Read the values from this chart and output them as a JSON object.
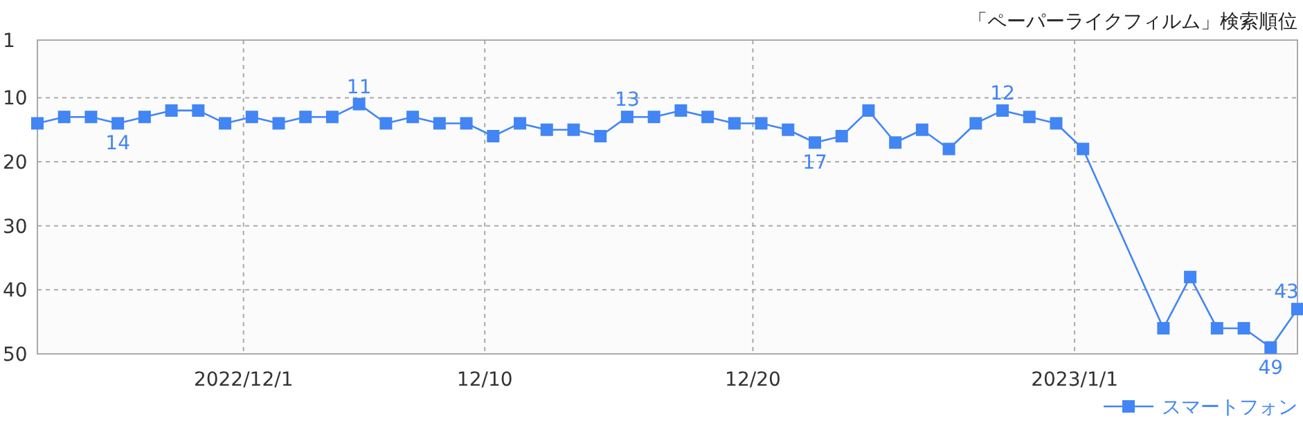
{
  "chart_data": {
    "type": "line",
    "title": "「ペーパーライクフィルム」検索順位",
    "x": [
      "2022-11-23T07:30",
      "2022-11-24T07:30",
      "2022-11-25T07:30",
      "2022-11-26T07:30",
      "2022-11-27T07:30",
      "2022-11-28T07:30",
      "2022-11-29T07:30",
      "2022-11-30T07:30",
      "2022-12-01T07:30",
      "2022-12-02T07:30",
      "2022-12-03T07:30",
      "2022-12-04T07:30",
      "2022-12-05T07:30",
      "2022-12-06T07:30",
      "2022-12-07T07:30",
      "2022-12-08T07:30",
      "2022-12-09T07:30",
      "2022-12-10T07:30",
      "2022-12-11T07:30",
      "2022-12-12T07:30",
      "2022-12-13T07:30",
      "2022-12-14T07:30",
      "2022-12-15T07:30",
      "2022-12-16T07:30",
      "2022-12-17T07:30",
      "2022-12-18T07:30",
      "2022-12-19T07:30",
      "2022-12-20T07:30",
      "2022-12-21T07:30",
      "2022-12-22T07:30",
      "2022-12-23T07:30",
      "2022-12-24T07:30",
      "2022-12-25T07:30",
      "2022-12-26T07:30",
      "2022-12-27T07:30",
      "2022-12-28T07:30",
      "2022-12-29T07:30",
      "2022-12-30T07:30",
      "2022-12-31T07:30",
      "2023-01-01T07:30",
      "2023-01-04T07:30",
      "2023-01-05T07:30",
      "2023-01-06T07:30",
      "2023-01-07T07:30",
      "2023-01-08T07:30",
      "2023-01-09T07:30"
    ],
    "series": [
      {
        "name": "スマートフォン",
        "color": "#4285f4",
        "values": [
          14,
          13,
          13,
          14,
          13,
          12,
          12,
          14,
          13,
          14,
          13,
          13,
          11,
          14,
          13,
          14,
          14,
          16,
          14,
          15,
          15,
          16,
          13,
          13,
          12,
          13,
          14,
          14,
          15,
          17,
          16,
          12,
          17,
          15,
          18,
          14,
          12,
          13,
          14,
          18,
          46,
          38,
          46,
          46,
          49,
          43
        ],
        "value_labels": [
          null,
          null,
          null,
          "14",
          null,
          null,
          null,
          null,
          null,
          null,
          null,
          null,
          "11",
          null,
          null,
          null,
          null,
          null,
          null,
          null,
          null,
          null,
          "13",
          null,
          null,
          null,
          null,
          null,
          null,
          "17",
          null,
          null,
          null,
          null,
          null,
          null,
          "12",
          null,
          null,
          null,
          null,
          null,
          null,
          null,
          "49",
          "43"
        ]
      }
    ],
    "xlim": [
      "2022-11-23T07:30",
      "2023-01-09T07:30"
    ],
    "xticks": [
      {
        "value": "2022-12-01",
        "label": "2022/12/1"
      },
      {
        "value": "2022-12-10",
        "label": "12/10"
      },
      {
        "value": "2022-12-20",
        "label": "12/20"
      },
      {
        "value": "2023-01-01",
        "label": "2023/1/1"
      }
    ],
    "ylim": [
      50,
      1
    ],
    "yticks": [
      1,
      10,
      20,
      30,
      40,
      50
    ],
    "grid": true,
    "legend": "bottom right",
    "marker": "square",
    "line_style": "solid"
  }
}
